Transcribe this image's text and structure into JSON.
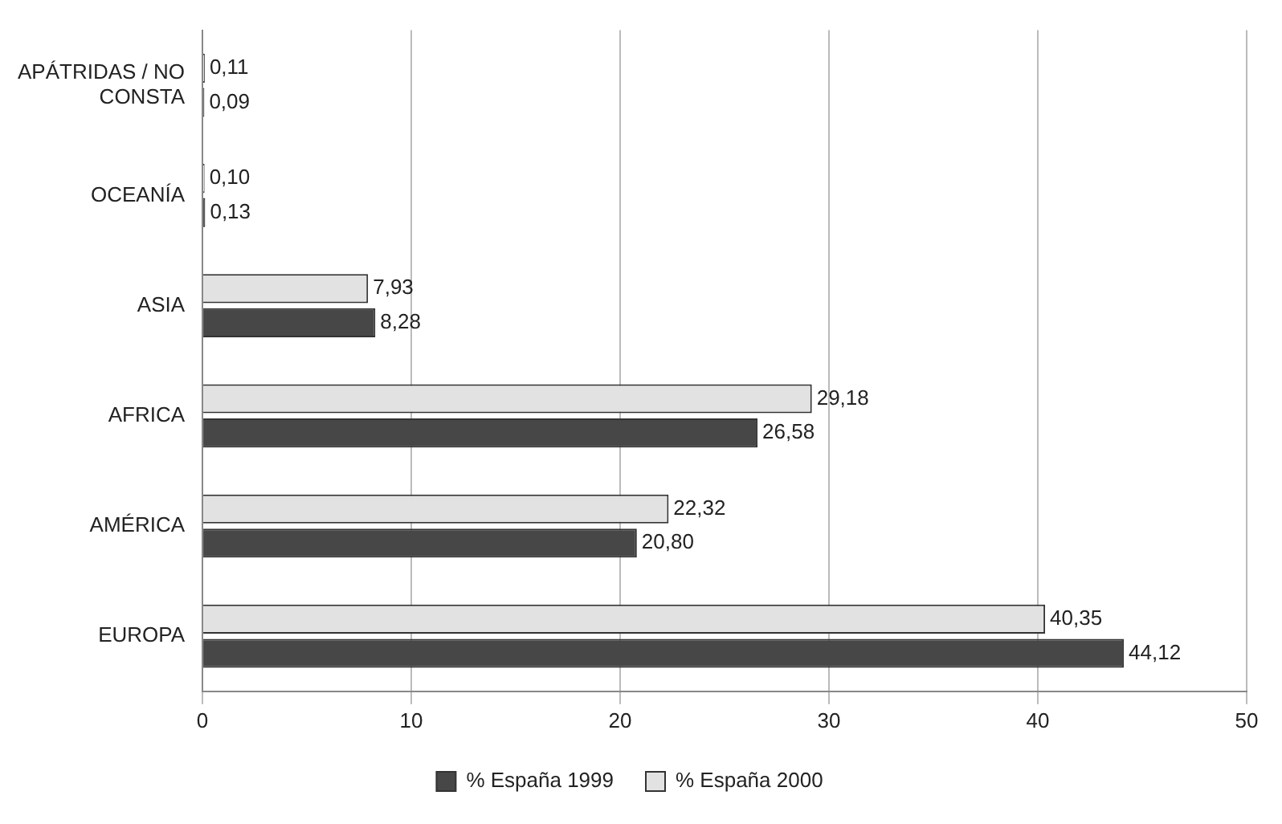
{
  "chart_data": {
    "type": "bar",
    "orientation": "horizontal",
    "categories": [
      "APÁTRIDAS / NO CONSTA",
      "OCEANÍA",
      "ASIA",
      "AFRICA",
      "AMÉRICA",
      "EUROPA"
    ],
    "series": [
      {
        "name": "% España 2000",
        "color": "#e2e2e2",
        "values": [
          0.11,
          0.1,
          7.93,
          29.18,
          22.32,
          40.35
        ],
        "value_labels": [
          "0,11",
          "0,10",
          "7,93",
          "29,18",
          "22,32",
          "40,35"
        ]
      },
      {
        "name": "% España 1999",
        "color": "#474747",
        "values": [
          0.09,
          0.13,
          8.28,
          26.58,
          20.8,
          44.12
        ],
        "value_labels": [
          "0,09",
          "0,13",
          "8,28",
          "26,58",
          "20,80",
          "44,12"
        ]
      }
    ],
    "xlim": [
      0,
      50
    ],
    "xticks": [
      0,
      10,
      20,
      30,
      40,
      50
    ],
    "grid": "x",
    "legend": "bottom"
  }
}
